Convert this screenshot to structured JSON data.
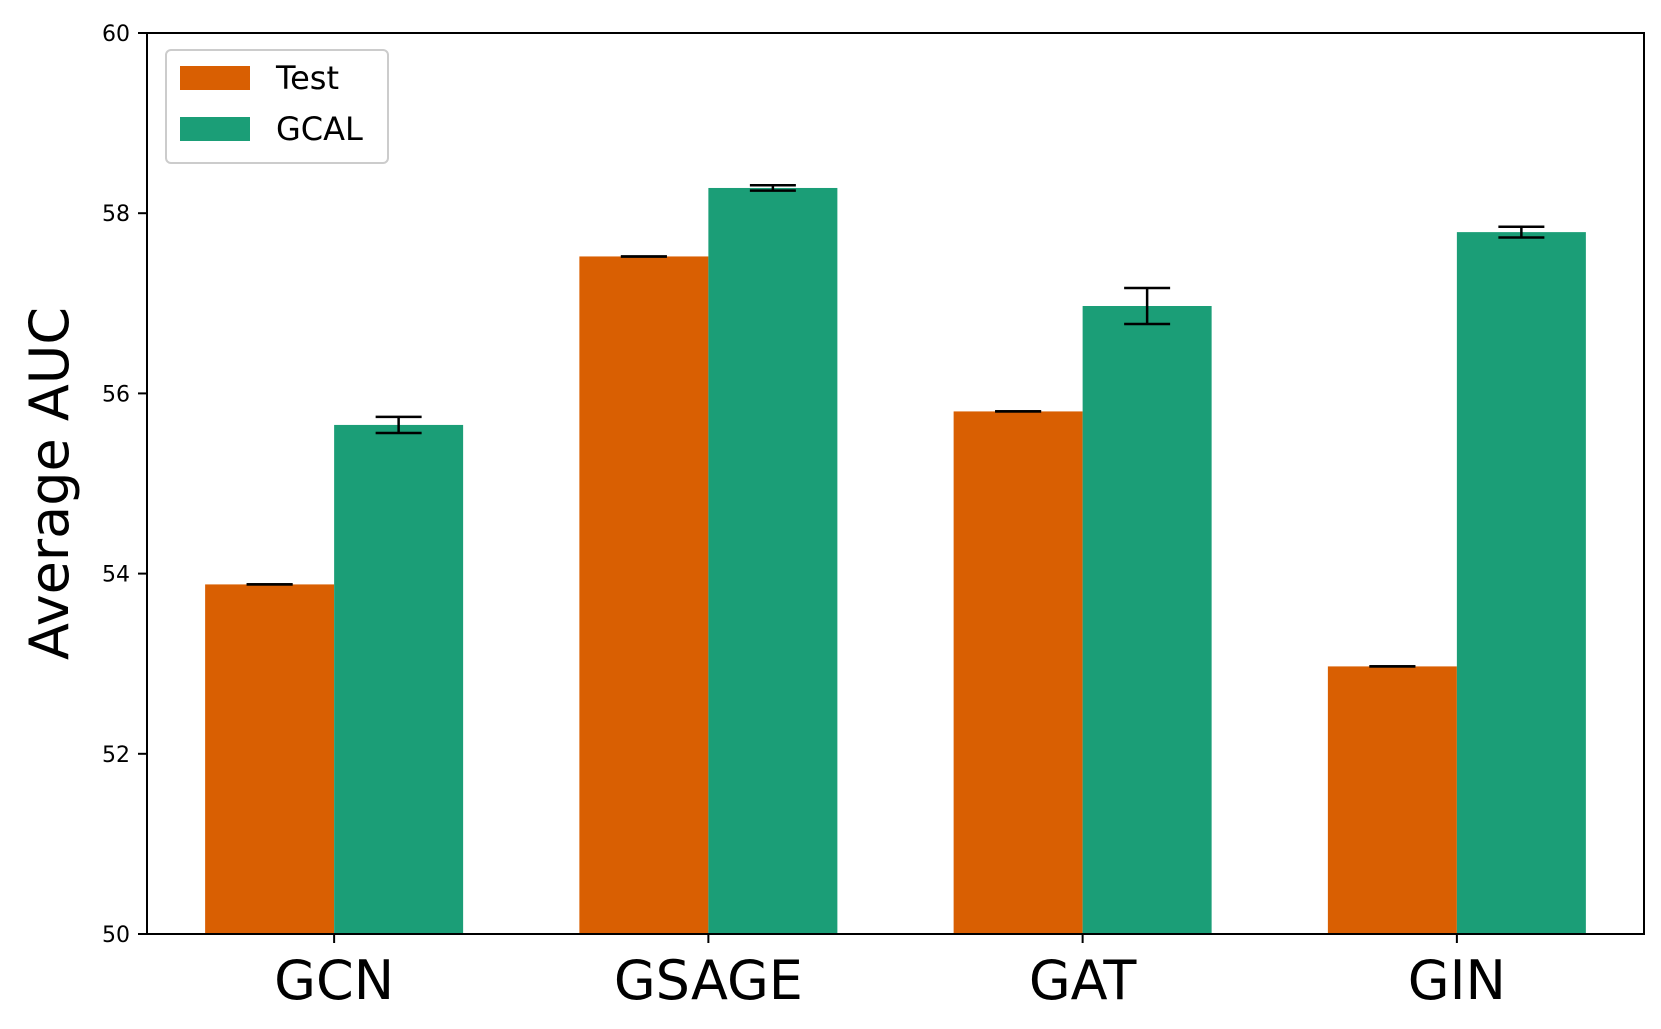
{
  "chart_data": {
    "type": "bar",
    "title": "",
    "xlabel": "",
    "ylabel": "Average AUC",
    "ylim": [
      50,
      60
    ],
    "yticks": [
      "50",
      "52",
      "54",
      "56",
      "58",
      "60"
    ],
    "categories": [
      "GCN",
      "GSAGE",
      "GAT",
      "GIN"
    ],
    "grid": false,
    "legend_position": "top-left",
    "series": [
      {
        "name": "Test",
        "color": "#d95f02",
        "values": [
          53.88,
          57.52,
          55.8,
          52.97
        ],
        "errors": [
          0.0,
          0.0,
          0.0,
          0.0
        ]
      },
      {
        "name": "GCAL",
        "color": "#1b9e77",
        "values": [
          55.65,
          58.28,
          56.97,
          57.79
        ],
        "errors": [
          0.09,
          0.03,
          0.2,
          0.06
        ]
      }
    ]
  }
}
